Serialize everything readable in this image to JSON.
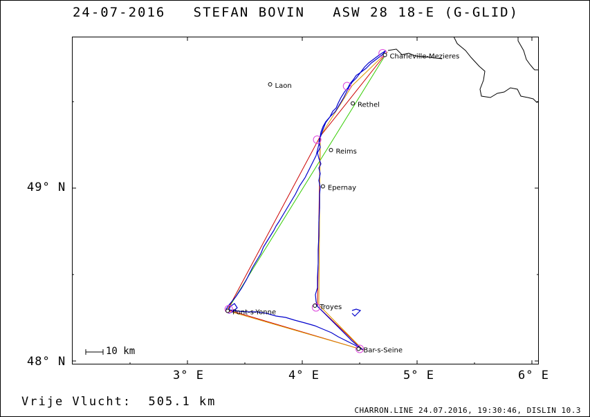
{
  "header": {
    "title": "24-07-2016   STEFAN BOVIN   ASW 28 18-E (G-GLID)"
  },
  "axes": {
    "x_ticks": [
      "3° E",
      "4° E",
      "5° E",
      "6° E"
    ],
    "y_ticks": [
      "49° N",
      "48° N"
    ]
  },
  "scale_bar": {
    "label": "10 km"
  },
  "cities": [
    {
      "name": "Charleville-Mezieres",
      "lon": 4.72,
      "lat": 49.77
    },
    {
      "name": "Laon",
      "lon": 3.72,
      "lat": 49.6
    },
    {
      "name": "Rethel",
      "lon": 4.44,
      "lat": 49.49
    },
    {
      "name": "Reims",
      "lon": 4.25,
      "lat": 49.22
    },
    {
      "name": "Epernay",
      "lon": 4.18,
      "lat": 49.01
    },
    {
      "name": "Troyes",
      "lon": 4.11,
      "lat": 48.32
    },
    {
      "name": "Pont-s-Yonne",
      "lon": 3.35,
      "lat": 48.29
    },
    {
      "name": "Bar-s-Seine",
      "lon": 4.49,
      "lat": 48.07
    }
  ],
  "turnpoints": [
    {
      "lon": 4.7,
      "lat": 49.78
    },
    {
      "lon": 4.39,
      "lat": 49.59
    },
    {
      "lon": 4.13,
      "lat": 49.28
    },
    {
      "lon": 3.36,
      "lat": 48.3
    },
    {
      "lon": 4.12,
      "lat": 48.31
    },
    {
      "lon": 4.5,
      "lat": 48.07
    }
  ],
  "colors": {
    "track": "#0000cc",
    "triangle": "#cc0000",
    "leg": "#33cc00",
    "turnpoint": "#dd44dd",
    "border": "#000000"
  },
  "footer": {
    "distance": "Vrije Vlucht:  505.1 km",
    "info": "CHARRON.LINE 24.07.2016, 19:30:46, DISLIN 10.3"
  }
}
